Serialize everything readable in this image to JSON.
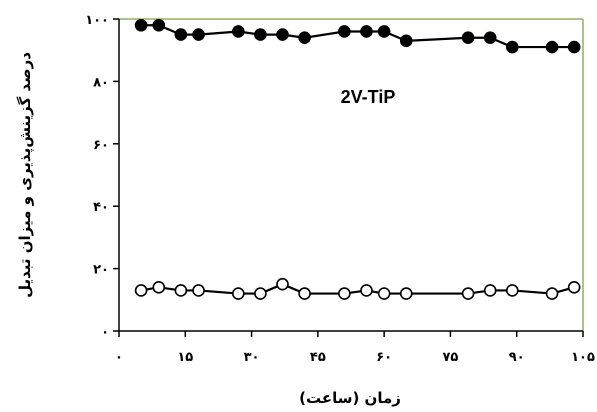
{
  "chart_data": {
    "type": "line",
    "title": "",
    "annotation": "2V-TiP",
    "xlabel": "زمان (ساعت)",
    "ylabel": "درصد گزینش‌پذیری و میزان تبدیل",
    "xlim": [
      0,
      105
    ],
    "ylim": [
      0,
      100
    ],
    "x_ticks": [
      0,
      15,
      30,
      45,
      60,
      75,
      90,
      105
    ],
    "x_tick_labels": [
      "٠",
      "١۵",
      "٣٠",
      "۴۵",
      "۶٠",
      "٧۵",
      "٩٠",
      "١٠۵"
    ],
    "y_ticks": [
      0,
      20,
      40,
      60,
      80,
      100
    ],
    "y_tick_labels": [
      "٠",
      "٢٠",
      "۴٠",
      "۶٠",
      "٨٠",
      "١٠٠"
    ],
    "grid": false,
    "legend": "none",
    "series": [
      {
        "marker": "filled",
        "color": "#000000",
        "x": [
          5,
          9,
          14,
          18,
          27,
          32,
          37,
          42,
          51,
          56,
          60,
          65,
          79,
          84,
          89,
          98,
          103
        ],
        "y": [
          98,
          98,
          95,
          95,
          96,
          95,
          95,
          94,
          96,
          96,
          96,
          93,
          94,
          94,
          91,
          91,
          91
        ]
      },
      {
        "marker": "open",
        "color": "#000000",
        "x": [
          5,
          9,
          14,
          18,
          27,
          32,
          37,
          42,
          51,
          56,
          60,
          65,
          79,
          84,
          89,
          98,
          103
        ],
        "y": [
          13,
          14,
          13,
          13,
          12,
          12,
          15,
          12,
          12,
          13,
          12,
          12,
          12,
          13,
          13,
          12,
          14
        ]
      }
    ]
  }
}
